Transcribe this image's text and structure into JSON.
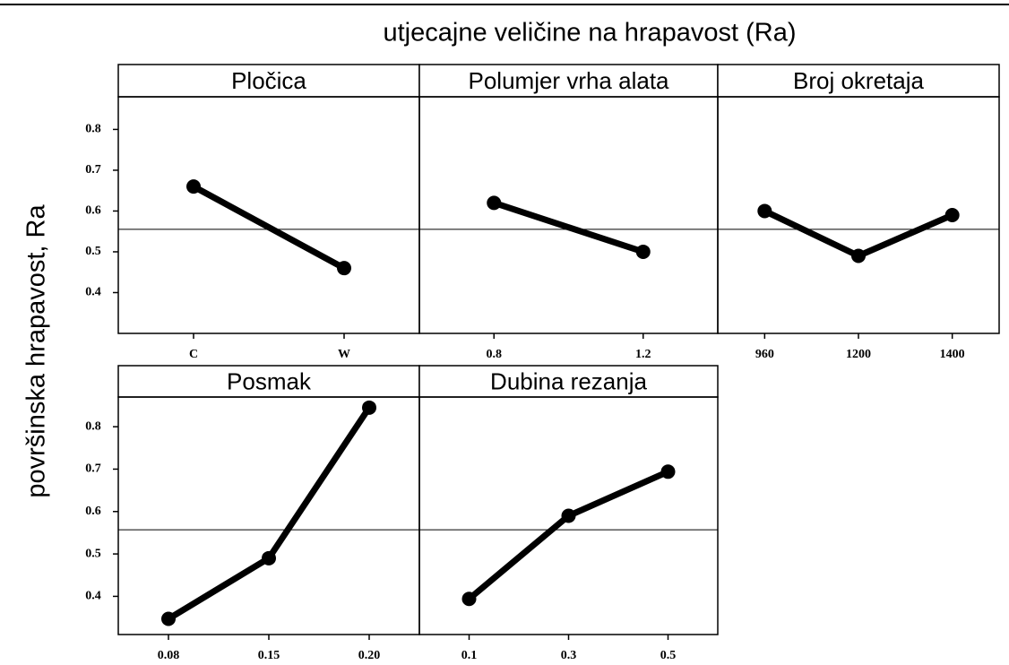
{
  "title": "utjecajne veličine na hrapavost (Ra)",
  "y_label": "površinska hrapavost, Ra",
  "chart_data": [
    {
      "type": "line",
      "title": "Pločica",
      "categories": [
        "C",
        "W"
      ],
      "values": [
        0.66,
        0.46
      ],
      "color": "#000000",
      "ylim": [
        0.3,
        0.88
      ],
      "yticks": [
        0.4,
        0.5,
        0.6,
        0.7,
        0.8
      ],
      "reference_line": 0.555
    },
    {
      "type": "line",
      "title": "Polumjer vrha alata",
      "categories": [
        "0.8",
        "1.2"
      ],
      "values": [
        0.62,
        0.5
      ],
      "color": "#000000",
      "ylim": [
        0.3,
        0.88
      ],
      "yticks": [
        0.4,
        0.5,
        0.6,
        0.7,
        0.8
      ],
      "reference_line": 0.555
    },
    {
      "type": "line",
      "title": "Broj okretaja",
      "categories": [
        "960",
        "1200",
        "1400"
      ],
      "values": [
        0.6,
        0.49,
        0.59
      ],
      "color": "#000000",
      "ylim": [
        0.3,
        0.88
      ],
      "yticks": [
        0.4,
        0.5,
        0.6,
        0.7,
        0.8
      ],
      "reference_line": 0.555
    },
    {
      "type": "line",
      "title": "Posmak",
      "categories": [
        "0.08",
        "0.15",
        "0.20"
      ],
      "values": [
        0.347,
        0.49,
        0.845
      ],
      "color": "#000000",
      "ylim": [
        0.31,
        0.87
      ],
      "yticks": [
        0.4,
        0.5,
        0.6,
        0.7,
        0.8
      ],
      "reference_line": 0.557
    },
    {
      "type": "line",
      "title": "Dubina rezanja",
      "categories": [
        "0.1",
        "0.3",
        "0.5"
      ],
      "values": [
        0.394,
        0.59,
        0.694
      ],
      "color": "#000000",
      "ylim": [
        0.31,
        0.87
      ],
      "yticks": [
        0.4,
        0.5,
        0.6,
        0.7,
        0.8
      ],
      "reference_line": 0.557
    }
  ]
}
